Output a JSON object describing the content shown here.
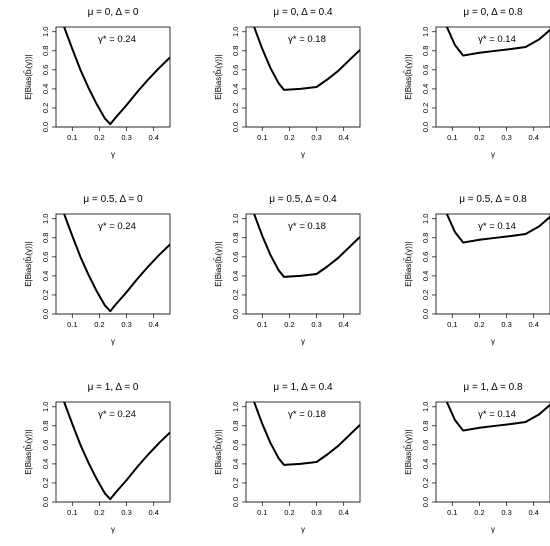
{
  "chart_data": [
    {
      "type": "line",
      "title": "μ = 0, Δ = 0",
      "annotation": "γ* = 0.24",
      "xlabel": "γ",
      "ylabel": "E|Bias(b̂ᵢ(γ))|",
      "xlim": [
        0.04,
        0.46
      ],
      "ylim": [
        0,
        1.05
      ],
      "x_ticks": [
        "0.1",
        "0.2",
        "0.3",
        "0.4"
      ],
      "y_ticks": [
        "0.0",
        "0.2",
        "0.4",
        "0.6",
        "0.8",
        "1.0"
      ],
      "reference_line": 0,
      "series": [
        {
          "x": [
            0.07,
            0.1,
            0.13,
            0.16,
            0.19,
            0.22,
            0.24,
            0.26,
            0.3,
            0.34,
            0.38,
            0.42,
            0.46
          ],
          "values": [
            1.05,
            0.82,
            0.6,
            0.41,
            0.24,
            0.09,
            0.03,
            0.1,
            0.23,
            0.37,
            0.5,
            0.62,
            0.73
          ]
        }
      ]
    },
    {
      "type": "line",
      "title": "μ = 0, Δ = 0.4",
      "annotation": "γ* = 0.18",
      "xlabel": "γ",
      "ylabel": "E|Bias(b̂ᵢ(γ))|",
      "xlim": [
        0.04,
        0.46
      ],
      "ylim": [
        0,
        1.05
      ],
      "x_ticks": [
        "0.1",
        "0.2",
        "0.3",
        "0.4"
      ],
      "y_ticks": [
        "0.0",
        "0.2",
        "0.4",
        "0.6",
        "0.8",
        "1.0"
      ],
      "reference_line": 0,
      "series": [
        {
          "x": [
            0.07,
            0.1,
            0.13,
            0.16,
            0.18,
            0.24,
            0.3,
            0.34,
            0.38,
            0.42,
            0.46
          ],
          "values": [
            1.05,
            0.82,
            0.62,
            0.46,
            0.39,
            0.4,
            0.42,
            0.5,
            0.59,
            0.7,
            0.81
          ]
        }
      ]
    },
    {
      "type": "line",
      "title": "μ = 0, Δ = 0.8",
      "annotation": "γ* = 0.14",
      "xlabel": "γ",
      "ylabel": "E|Bias(b̂ᵢ(γ))|",
      "xlim": [
        0.04,
        0.46
      ],
      "ylim": [
        0,
        1.05
      ],
      "x_ticks": [
        "0.1",
        "0.2",
        "0.3",
        "0.4"
      ],
      "y_ticks": [
        "0.0",
        "0.2",
        "0.4",
        "0.6",
        "0.8",
        "1.0"
      ],
      "reference_line": 0,
      "series": [
        {
          "x": [
            0.08,
            0.11,
            0.14,
            0.2,
            0.26,
            0.32,
            0.37,
            0.42,
            0.46
          ],
          "values": [
            1.05,
            0.86,
            0.75,
            0.78,
            0.8,
            0.82,
            0.84,
            0.92,
            1.02
          ]
        }
      ]
    },
    {
      "type": "line",
      "title": "μ = 0.5, Δ = 0",
      "annotation": "γ* = 0.24",
      "xlabel": "γ",
      "ylabel": "E|Bias(b̂ᵢ(γ))|",
      "xlim": [
        0.04,
        0.46
      ],
      "ylim": [
        0,
        1.05
      ],
      "x_ticks": [
        "0.1",
        "0.2",
        "0.3",
        "0.4"
      ],
      "y_ticks": [
        "0.0",
        "0.2",
        "0.4",
        "0.6",
        "0.8",
        "1.0"
      ],
      "reference_line": 0,
      "series": [
        {
          "x": [
            0.07,
            0.1,
            0.13,
            0.16,
            0.19,
            0.22,
            0.24,
            0.26,
            0.3,
            0.34,
            0.38,
            0.42,
            0.46
          ],
          "values": [
            1.05,
            0.82,
            0.6,
            0.41,
            0.24,
            0.09,
            0.03,
            0.1,
            0.23,
            0.37,
            0.5,
            0.62,
            0.73
          ]
        }
      ]
    },
    {
      "type": "line",
      "title": "μ = 0.5, Δ = 0.4",
      "annotation": "γ* = 0.18",
      "xlabel": "γ",
      "ylabel": "E|Bias(b̂ᵢ(γ))|",
      "xlim": [
        0.04,
        0.46
      ],
      "ylim": [
        0,
        1.05
      ],
      "x_ticks": [
        "0.1",
        "0.2",
        "0.3",
        "0.4"
      ],
      "y_ticks": [
        "0.0",
        "0.2",
        "0.4",
        "0.6",
        "0.8",
        "1.0"
      ],
      "reference_line": 0,
      "series": [
        {
          "x": [
            0.07,
            0.1,
            0.13,
            0.16,
            0.18,
            0.24,
            0.3,
            0.34,
            0.38,
            0.42,
            0.46
          ],
          "values": [
            1.05,
            0.82,
            0.62,
            0.46,
            0.39,
            0.4,
            0.42,
            0.5,
            0.59,
            0.7,
            0.81
          ]
        }
      ]
    },
    {
      "type": "line",
      "title": "μ = 0.5, Δ = 0.8",
      "annotation": "γ* = 0.14",
      "xlabel": "γ",
      "ylabel": "E|Bias(b̂ᵢ(γ))|",
      "xlim": [
        0.04,
        0.46
      ],
      "ylim": [
        0,
        1.05
      ],
      "x_ticks": [
        "0.1",
        "0.2",
        "0.3",
        "0.4"
      ],
      "y_ticks": [
        "0.0",
        "0.2",
        "0.4",
        "0.6",
        "0.8",
        "1.0"
      ],
      "reference_line": 0,
      "series": [
        {
          "x": [
            0.08,
            0.11,
            0.14,
            0.2,
            0.26,
            0.32,
            0.37,
            0.42,
            0.46
          ],
          "values": [
            1.05,
            0.86,
            0.75,
            0.78,
            0.8,
            0.82,
            0.84,
            0.92,
            1.02
          ]
        }
      ]
    },
    {
      "type": "line",
      "title": "μ = 1, Δ = 0",
      "annotation": "γ* = 0.24",
      "xlabel": "γ",
      "ylabel": "E|Bias(b̂ᵢ(γ))|",
      "xlim": [
        0.04,
        0.46
      ],
      "ylim": [
        0,
        1.05
      ],
      "x_ticks": [
        "0.1",
        "0.2",
        "0.3",
        "0.4"
      ],
      "y_ticks": [
        "0.0",
        "0.2",
        "0.4",
        "0.6",
        "0.8",
        "1.0"
      ],
      "reference_line": 0,
      "series": [
        {
          "x": [
            0.07,
            0.1,
            0.13,
            0.16,
            0.19,
            0.22,
            0.24,
            0.26,
            0.3,
            0.34,
            0.38,
            0.42,
            0.46
          ],
          "values": [
            1.05,
            0.82,
            0.6,
            0.41,
            0.24,
            0.09,
            0.03,
            0.1,
            0.23,
            0.37,
            0.5,
            0.62,
            0.73
          ]
        }
      ]
    },
    {
      "type": "line",
      "title": "μ = 1, Δ = 0.4",
      "annotation": "γ* = 0.18",
      "xlabel": "γ",
      "ylabel": "E|Bias(b̂ᵢ(γ))|",
      "xlim": [
        0.04,
        0.46
      ],
      "ylim": [
        0,
        1.05
      ],
      "x_ticks": [
        "0.1",
        "0.2",
        "0.3",
        "0.4"
      ],
      "y_ticks": [
        "0.0",
        "0.2",
        "0.4",
        "0.6",
        "0.8",
        "1.0"
      ],
      "reference_line": 0,
      "series": [
        {
          "x": [
            0.07,
            0.1,
            0.13,
            0.16,
            0.18,
            0.24,
            0.3,
            0.34,
            0.38,
            0.42,
            0.46
          ],
          "values": [
            1.05,
            0.82,
            0.62,
            0.46,
            0.39,
            0.4,
            0.42,
            0.5,
            0.59,
            0.7,
            0.81
          ]
        }
      ]
    },
    {
      "type": "line",
      "title": "μ = 1, Δ = 0.8",
      "annotation": "γ* = 0.14",
      "xlabel": "γ",
      "ylabel": "E|Bias(b̂ᵢ(γ))|",
      "xlim": [
        0.04,
        0.46
      ],
      "ylim": [
        0,
        1.05
      ],
      "x_ticks": [
        "0.1",
        "0.2",
        "0.3",
        "0.4"
      ],
      "y_ticks": [
        "0.0",
        "0.2",
        "0.4",
        "0.6",
        "0.8",
        "1.0"
      ],
      "reference_line": 0,
      "series": [
        {
          "x": [
            0.08,
            0.11,
            0.14,
            0.2,
            0.26,
            0.32,
            0.37,
            0.42,
            0.46
          ],
          "values": [
            1.05,
            0.86,
            0.75,
            0.78,
            0.8,
            0.82,
            0.84,
            0.92,
            1.02
          ]
        }
      ]
    }
  ]
}
